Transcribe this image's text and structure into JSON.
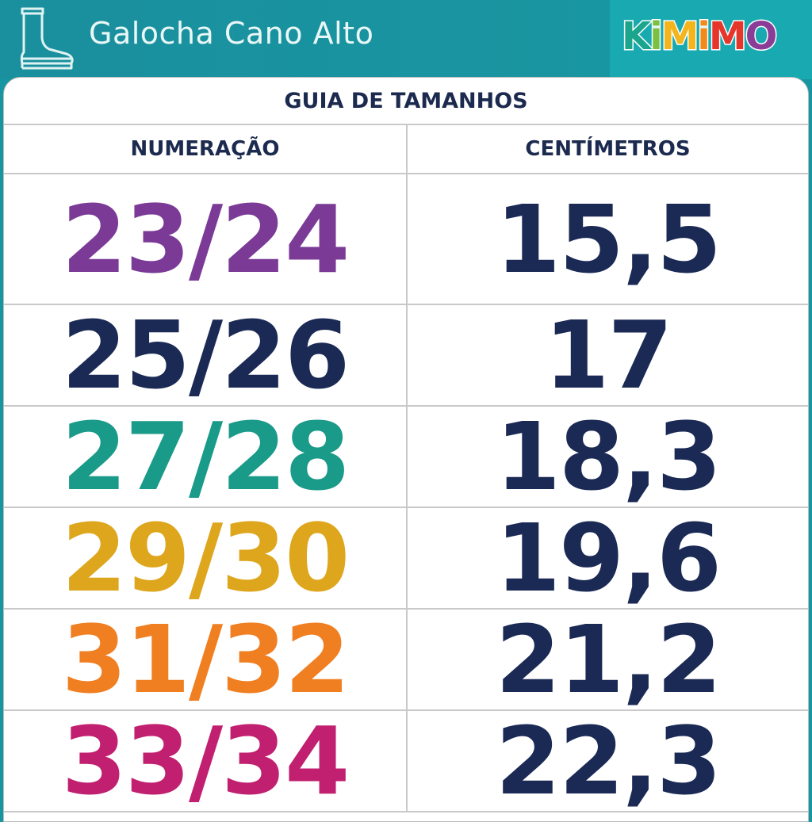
{
  "header": {
    "title": "Galocha Cano Alto",
    "icon": "boot-icon",
    "brand": "KiMiMO"
  },
  "brand_colors": [
    "#1aa58c",
    "#7ac143",
    "#f4b51c",
    "#f08a1c",
    "#e6352b",
    "#8a3c96"
  ],
  "table": {
    "title": "GUIA DE TAMANHOS",
    "columns": [
      "NUMERAÇÃO",
      "CENTÍMETROS"
    ],
    "rows": [
      {
        "size": "23/24",
        "cm": "15,5",
        "color": "#7a3a96"
      },
      {
        "size": "25/26",
        "cm": "17",
        "color": "#1b2a55"
      },
      {
        "size": "27/28",
        "cm": "18,3",
        "color": "#1a9a88"
      },
      {
        "size": "29/30",
        "cm": "19,6",
        "color": "#dda61c"
      },
      {
        "size": "31/32",
        "cm": "21,2",
        "color": "#f07f22"
      },
      {
        "size": "33/34",
        "cm": "22,3",
        "color": "#c11f6f"
      }
    ]
  }
}
